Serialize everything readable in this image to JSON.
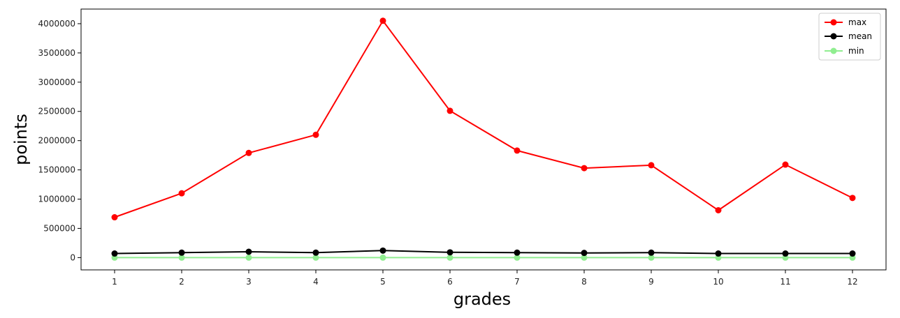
{
  "chart_data": {
    "type": "line",
    "title": "",
    "xlabel": "grades",
    "ylabel": "points",
    "x": [
      1,
      2,
      3,
      4,
      5,
      6,
      7,
      8,
      9,
      10,
      11,
      12
    ],
    "xticks": [
      "1",
      "2",
      "3",
      "4",
      "5",
      "6",
      "7",
      "8",
      "9",
      "10",
      "11",
      "12"
    ],
    "yticks": [
      "0",
      "500000",
      "1000000",
      "1500000",
      "2000000",
      "2500000",
      "3000000",
      "3500000",
      "4000000"
    ],
    "ylim": [
      -210000,
      4250000
    ],
    "xlim": [
      0.5,
      12.5
    ],
    "grid": false,
    "legend_position": "top-right",
    "series": [
      {
        "name": "max",
        "color": "#ff0000",
        "marker": "circle",
        "values": [
          690000,
          1100000,
          1790000,
          2100000,
          4050000,
          2510000,
          1830000,
          1530000,
          1580000,
          810000,
          1590000,
          1020000
        ]
      },
      {
        "name": "mean",
        "color": "#000000",
        "marker": "circle",
        "values": [
          70000,
          85000,
          100000,
          85000,
          120000,
          90000,
          85000,
          80000,
          85000,
          70000,
          70000,
          70000
        ]
      },
      {
        "name": "min",
        "color": "#90ee90",
        "marker": "circle",
        "values": [
          0,
          0,
          0,
          0,
          0,
          0,
          0,
          0,
          0,
          0,
          0,
          0
        ]
      }
    ]
  }
}
